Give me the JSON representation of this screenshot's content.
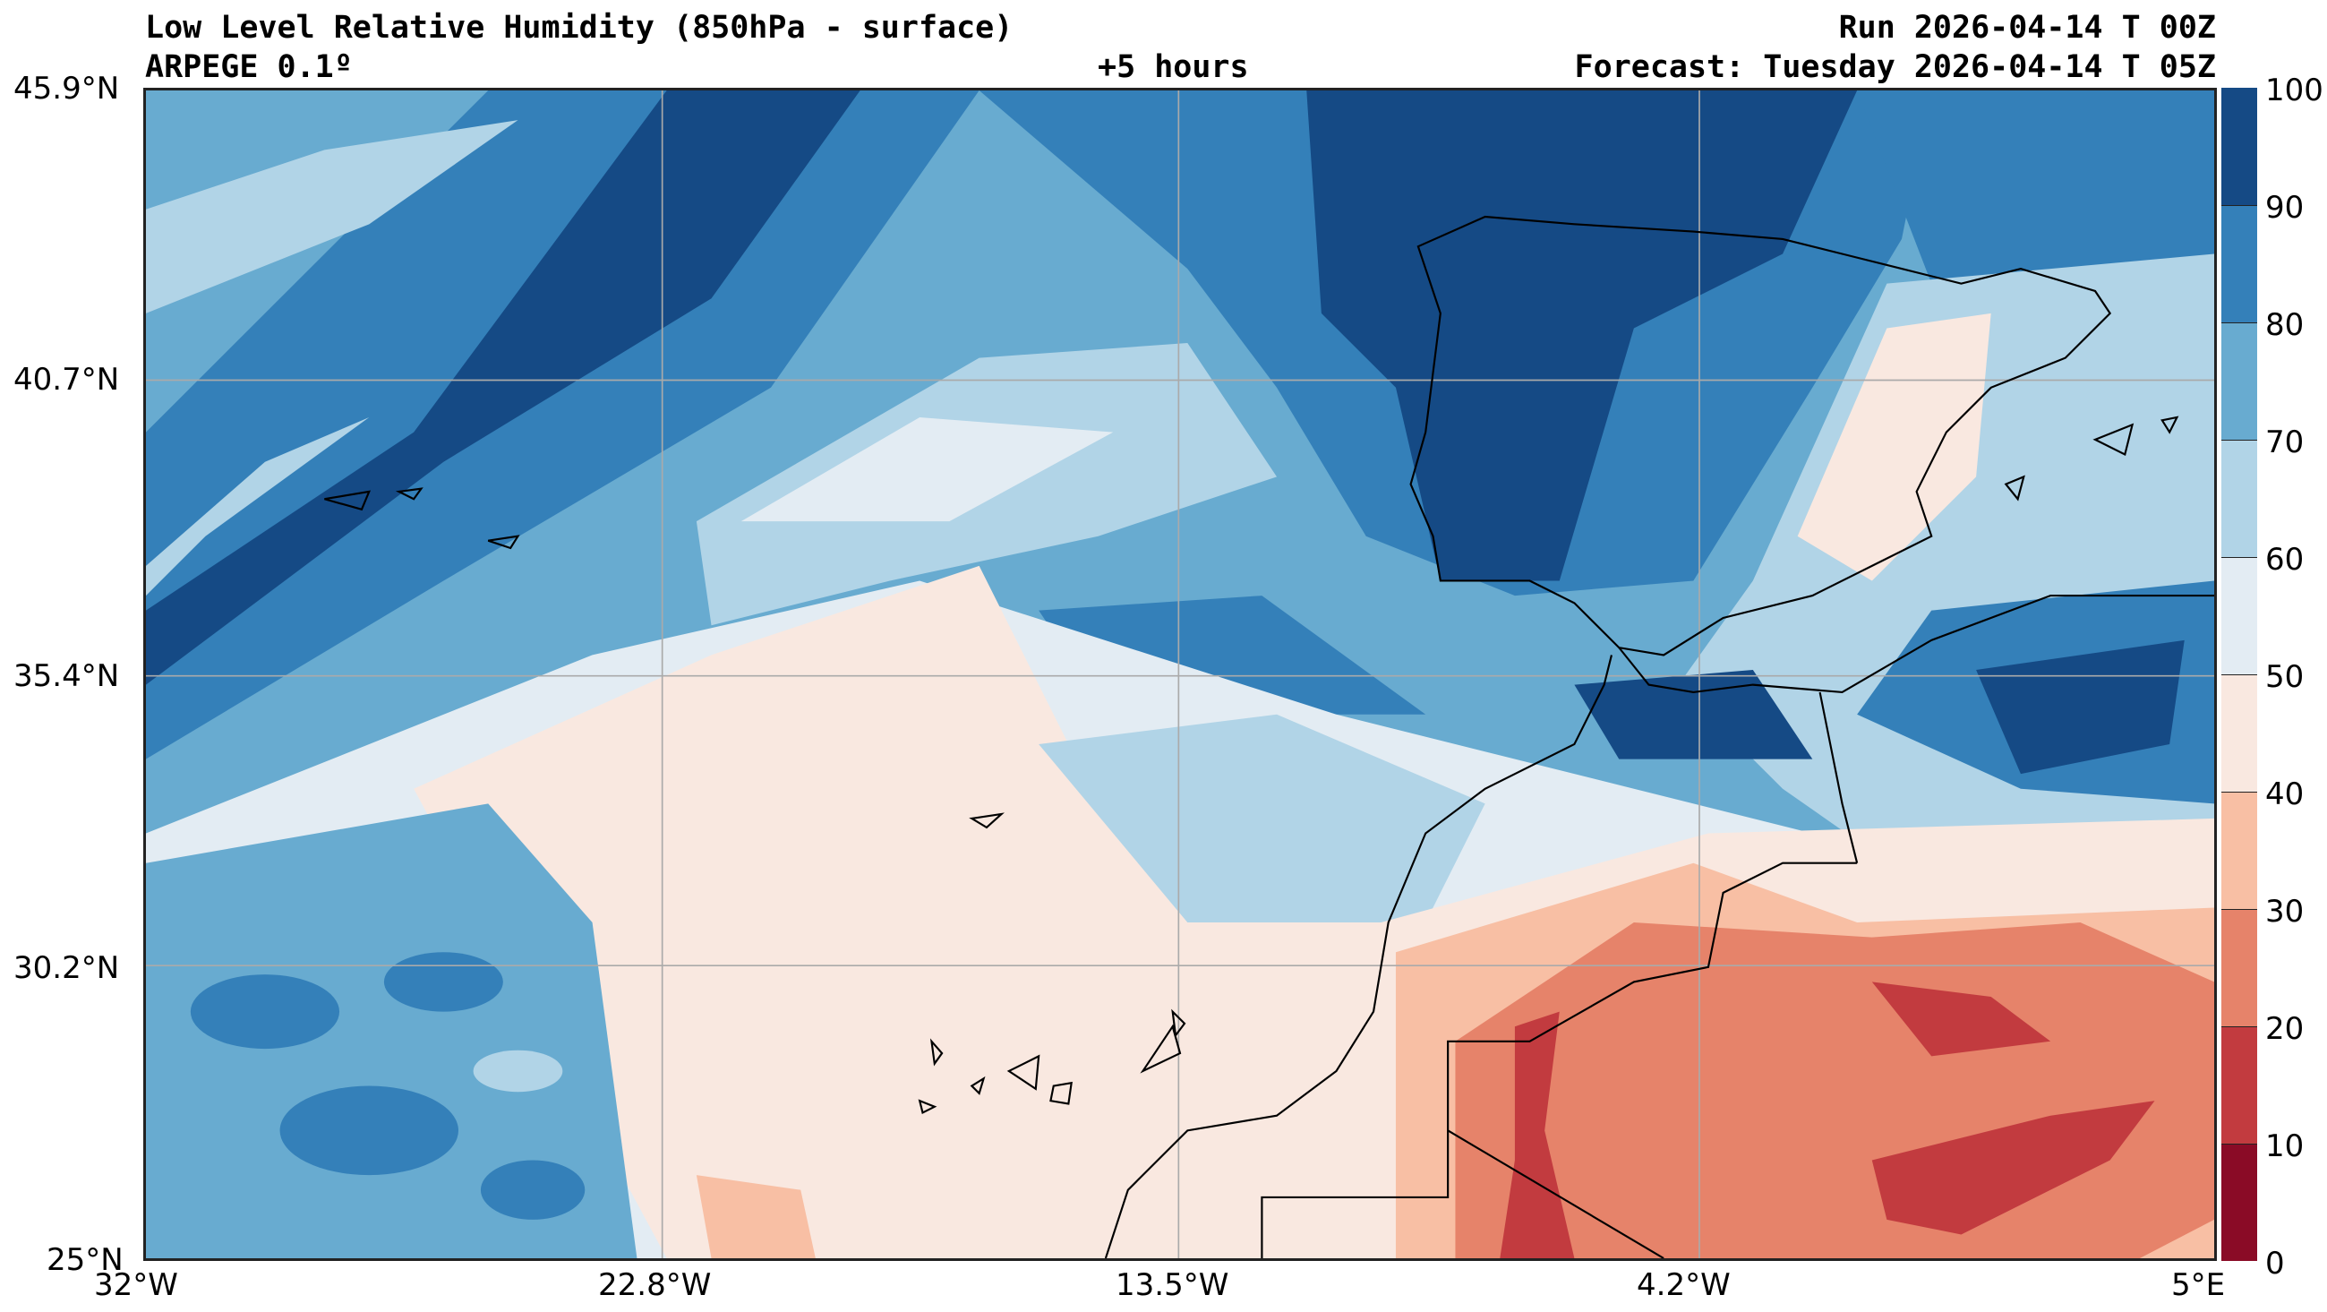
{
  "header": {
    "title": "Low Level Relative Humidity (850hPa - surface)",
    "model": "ARPEGE 0.1º",
    "lead": "+5 hours",
    "run": "Run 2026-04-14 T 00Z",
    "forecast": "Forecast: Tuesday 2026-04-14 T 05Z"
  },
  "axes": {
    "lat_ticks": [
      "45.9°N",
      "40.7°N",
      "35.4°N",
      "30.2°N",
      "25°N"
    ],
    "lon_ticks": [
      "32°W",
      "22.8°W",
      "13.5°W",
      "4.2°W",
      "5°E"
    ]
  },
  "colorbar": {
    "ticks": [
      "100",
      "90",
      "80",
      "70",
      "60",
      "50",
      "40",
      "30",
      "20",
      "10",
      "0"
    ],
    "levels": [
      {
        "range": "90-100",
        "color": "#154a85"
      },
      {
        "range": "80-90",
        "color": "#3480b9"
      },
      {
        "range": "70-80",
        "color": "#68abd0"
      },
      {
        "range": "60-70",
        "color": "#b1d4e7"
      },
      {
        "range": "50-60",
        "color": "#e3ecf3"
      },
      {
        "range": "40-50",
        "color": "#f9e8e0"
      },
      {
        "range": "30-40",
        "color": "#f8bfa4"
      },
      {
        "range": "20-30",
        "color": "#e6836a"
      },
      {
        "range": "10-20",
        "color": "#c23b3f"
      },
      {
        "range": "0-10",
        "color": "#8a0b26"
      }
    ]
  }
}
